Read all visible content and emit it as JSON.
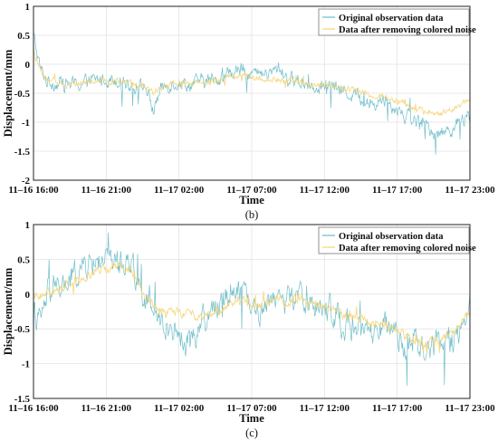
{
  "chart_data": [
    {
      "type": "line",
      "caption": "(b)",
      "xlabel": "Time",
      "ylabel": "Displacement/mm",
      "x_ticks": [
        "11–16 16:00",
        "11–16 21:00",
        "11–17 02:00",
        "11–17 07:00",
        "11–17 12:00",
        "11–17 17:00",
        "11–17 23:00"
      ],
      "x_range": [
        "11-16 16:00",
        "11-17 23:00"
      ],
      "ylim": [
        -2,
        1
      ],
      "y_ticks": [
        -2,
        -1.5,
        -1,
        -0.5,
        0,
        0.5,
        1
      ],
      "grid": true,
      "legend_position": "top-right",
      "series": [
        {
          "name": "Original observation data",
          "color": "#69bcc7",
          "x": [
            "11-16 16:00",
            "11-16 16:30",
            "11-16 17:00",
            "11-16 19:00",
            "11-16 21:00",
            "11-16 22:00",
            "11-16 23:00",
            "11-17 00:00",
            "11-17 00:30",
            "11-17 01:00",
            "11-17 01:30",
            "11-17 02:00",
            "11-17 03:00",
            "11-17 04:00",
            "11-17 05:00",
            "11-17 06:00",
            "11-17 07:00",
            "11-17 08:00",
            "11-17 09:00",
            "11-17 09:30",
            "11-17 10:00",
            "11-17 11:00",
            "11-17 12:00",
            "11-17 13:00",
            "11-17 14:00",
            "11-17 15:00",
            "11-17 16:00",
            "11-17 17:00",
            "11-17 18:00",
            "11-17 19:00",
            "11-17 20:00",
            "11-17 21:00",
            "11-17 22:00",
            "11-17 23:00"
          ],
          "y": [
            0.5,
            -0.1,
            -0.3,
            -0.35,
            -0.25,
            -0.25,
            -0.35,
            -0.4,
            -0.8,
            -0.45,
            -0.35,
            -0.3,
            -0.35,
            -0.3,
            -0.25,
            -0.15,
            -0.1,
            -0.2,
            -0.15,
            -0.05,
            -0.25,
            -0.3,
            -0.35,
            -0.4,
            -0.45,
            -0.55,
            -0.7,
            -0.6,
            -0.8,
            -0.95,
            -1.1,
            -1.2,
            -1.05,
            -0.9
          ],
          "amplitude": 0.2
        },
        {
          "name": "Data after removing colored noise",
          "color": "#f5d57a",
          "x": [
            "11-16 16:00",
            "11-16 16:30",
            "11-16 17:00",
            "11-16 19:00",
            "11-16 21:00",
            "11-16 22:00",
            "11-16 23:00",
            "11-17 00:00",
            "11-17 00:30",
            "11-17 01:00",
            "11-17 02:00",
            "11-17 03:00",
            "11-17 04:00",
            "11-17 05:00",
            "11-17 06:00",
            "11-17 07:00",
            "11-17 08:00",
            "11-17 09:00",
            "11-17 10:00",
            "11-17 11:00",
            "11-17 12:00",
            "11-17 13:00",
            "11-17 14:00",
            "11-17 15:00",
            "11-17 16:00",
            "11-17 17:00",
            "11-17 18:00",
            "11-17 19:00",
            "11-17 20:00",
            "11-17 21:00",
            "11-17 22:00",
            "11-17 23:00"
          ],
          "y": [
            0.2,
            -0.1,
            -0.3,
            -0.33,
            -0.28,
            -0.3,
            -0.35,
            -0.38,
            -0.5,
            -0.4,
            -0.32,
            -0.33,
            -0.3,
            -0.27,
            -0.22,
            -0.2,
            -0.25,
            -0.25,
            -0.28,
            -0.32,
            -0.35,
            -0.38,
            -0.42,
            -0.45,
            -0.55,
            -0.55,
            -0.65,
            -0.75,
            -0.85,
            -0.85,
            -0.75,
            -0.6
          ],
          "amplitude": 0.08
        }
      ]
    },
    {
      "type": "line",
      "caption": "(c)",
      "xlabel": "Time",
      "ylabel": "Displacement/mm",
      "x_ticks": [
        "11–16 16:00",
        "11–16 21:00",
        "11–17 02:00",
        "11–17 07:00",
        "11–17 12:00",
        "11–17 17:00",
        "11–17 23:00"
      ],
      "x_range": [
        "11-16 16:00",
        "11-17 23:00"
      ],
      "ylim": [
        -1.5,
        1
      ],
      "y_ticks": [
        -1.5,
        -1,
        -0.5,
        0,
        0.5,
        1
      ],
      "grid": true,
      "legend_position": "top-right",
      "series": [
        {
          "name": "Original observation data",
          "color": "#69bcc7",
          "x": [
            "11-16 16:00",
            "11-16 16:30",
            "11-16 17:00",
            "11-16 18:00",
            "11-16 19:00",
            "11-16 20:00",
            "11-16 21:00",
            "11-16 22:00",
            "11-16 23:00",
            "11-17 00:00",
            "11-17 01:00",
            "11-17 02:00",
            "11-17 03:00",
            "11-17 04:00",
            "11-17 05:00",
            "11-17 06:00",
            "11-17 07:00",
            "11-17 08:00",
            "11-17 09:00",
            "11-17 10:00",
            "11-17 11:00",
            "11-17 12:00",
            "11-17 13:00",
            "11-17 14:00",
            "11-17 15:00",
            "11-17 16:00",
            "11-17 17:00",
            "11-17 18:00",
            "11-17 19:00",
            "11-17 20:00",
            "11-17 21:00",
            "11-17 22:00",
            "11-17 23:00"
          ],
          "y": [
            -0.3,
            -0.4,
            0.0,
            0.1,
            0.3,
            0.45,
            0.5,
            0.5,
            0.45,
            -0.1,
            -0.4,
            -0.5,
            -0.7,
            -0.4,
            -0.2,
            0.1,
            0.1,
            -0.3,
            0.0,
            -0.1,
            0.0,
            -0.2,
            -0.2,
            -0.4,
            -0.5,
            -0.6,
            -0.5,
            -0.7,
            -0.75,
            -0.8,
            -0.75,
            -0.6,
            -0.2
          ],
          "amplitude": 0.3
        },
        {
          "name": "Data after removing colored noise",
          "color": "#f5d57a",
          "x": [
            "11-16 16:00",
            "11-16 17:00",
            "11-16 18:00",
            "11-16 19:00",
            "11-16 20:00",
            "11-16 21:00",
            "11-16 22:00",
            "11-16 23:00",
            "11-17 00:00",
            "11-17 01:00",
            "11-17 02:00",
            "11-17 03:00",
            "11-17 04:00",
            "11-17 05:00",
            "11-17 06:00",
            "11-17 07:00",
            "11-17 08:00",
            "11-17 09:00",
            "11-17 10:00",
            "11-17 11:00",
            "11-17 12:00",
            "11-17 13:00",
            "11-17 14:00",
            "11-17 15:00",
            "11-17 16:00",
            "11-17 17:00",
            "11-17 18:00",
            "11-17 19:00",
            "11-17 20:00",
            "11-17 21:00",
            "11-17 22:00",
            "11-17 23:00"
          ],
          "y": [
            0.0,
            0.0,
            0.1,
            0.2,
            0.3,
            0.35,
            0.4,
            0.35,
            -0.1,
            -0.2,
            -0.25,
            -0.3,
            -0.3,
            -0.25,
            -0.15,
            -0.1,
            -0.15,
            -0.1,
            -0.1,
            -0.05,
            -0.15,
            -0.2,
            -0.3,
            -0.35,
            -0.4,
            -0.45,
            -0.55,
            -0.65,
            -0.7,
            -0.65,
            -0.5,
            -0.25
          ],
          "amplitude": 0.1
        }
      ]
    }
  ]
}
